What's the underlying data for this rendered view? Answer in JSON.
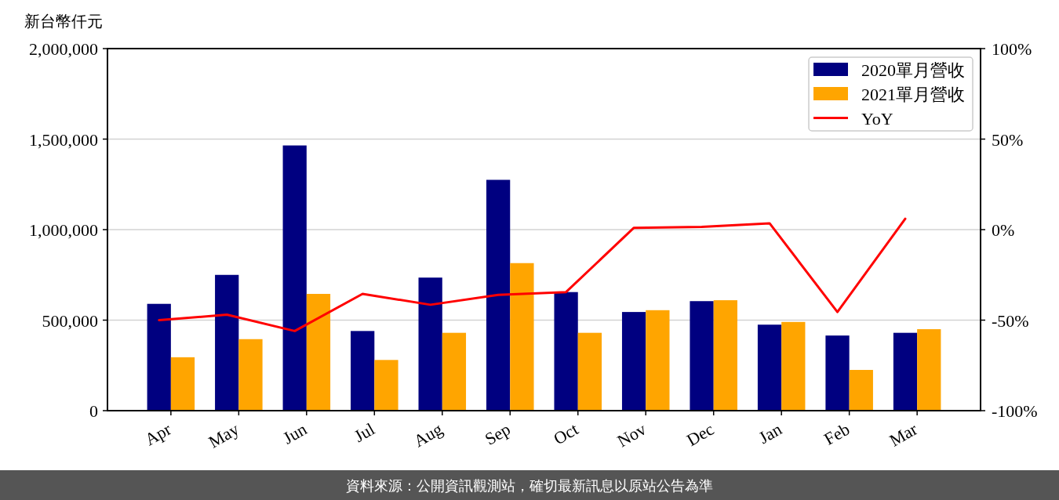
{
  "chart_data": {
    "type": "bar",
    "ylabel": "新台幣仟元",
    "categories": [
      "Apr",
      "May",
      "Jun",
      "Jul",
      "Aug",
      "Sep",
      "Oct",
      "Nov",
      "Dec",
      "Jan",
      "Feb",
      "Mar"
    ],
    "series": [
      {
        "name": "2020單月營收",
        "color": "#000080",
        "values": [
          590000,
          750000,
          1465000,
          440000,
          735000,
          1275000,
          655000,
          545000,
          605000,
          475000,
          415000,
          430000
        ]
      },
      {
        "name": "2021單月營收",
        "color": "#ffa500",
        "values": [
          295000,
          395000,
          645000,
          280000,
          430000,
          815000,
          430000,
          555000,
          610000,
          490000,
          225000,
          450000
        ]
      },
      {
        "name": "YoY",
        "type": "line",
        "axis": "y2",
        "color": "#ff0000",
        "values": [
          -50,
          -47,
          -56,
          -35.5,
          -41.5,
          -36,
          -34.5,
          1,
          1.5,
          3.5,
          -45.5,
          6
        ]
      }
    ],
    "ylim": [
      0,
      2000000
    ],
    "yticks": [
      0,
      {
        "value": 500000,
        "label": "500,000"
      },
      {
        "value": 1000000,
        "label": "1,000,000"
      },
      {
        "value": 1500000,
        "label": "1,500,000"
      },
      {
        "value": 2000000,
        "label": "2,000,000"
      }
    ],
    "y2lim": [
      -100,
      100
    ],
    "y2ticks": [
      {
        "value": -100,
        "label": "-100%"
      },
      {
        "value": -50,
        "label": "-50%"
      },
      {
        "value": 0,
        "label": "0%"
      },
      {
        "value": 50,
        "label": "50%"
      },
      {
        "value": 100,
        "label": "100%"
      }
    ],
    "grid": "y",
    "legend": "top right",
    "annotations": [
      "資料來源：公開資訊觀測站，確切最新訊息以原站公告為準"
    ]
  }
}
